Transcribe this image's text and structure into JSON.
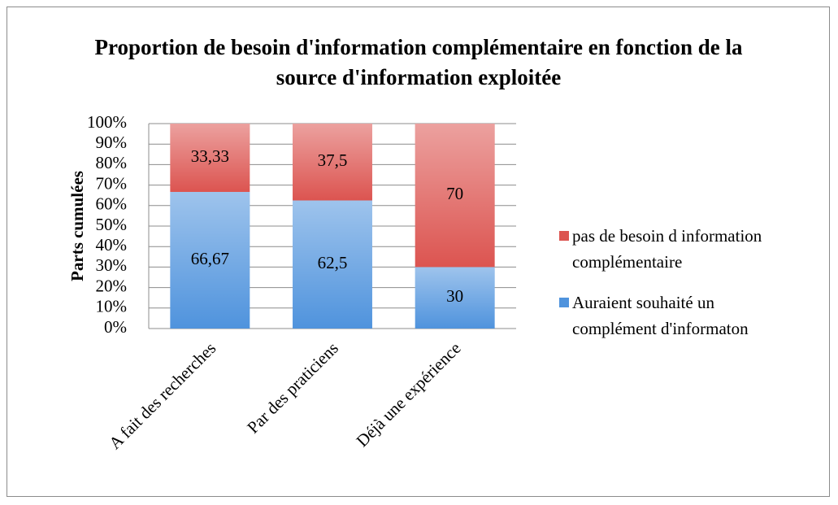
{
  "chart_data": {
    "type": "stacked_bar",
    "title": "Proportion de besoin d'information complémentaire en fonction de la source d'information exploitée",
    "y_axis_label": "Parts cumulées",
    "categories": [
      "A fait des recherches",
      "Par des praticiens",
      "Déjà une expérience"
    ],
    "series": [
      {
        "name": "Auraient souhaité un complément d'informaton",
        "color": "#4f93dd",
        "values": [
          66.67,
          62.5,
          30
        ],
        "value_labels": [
          "66,67",
          "62,5",
          "30"
        ]
      },
      {
        "name": "pas de besoin d information complémentaire",
        "color": "#dc5450",
        "values": [
          33.33,
          37.5,
          70
        ],
        "value_labels": [
          "33,33",
          "37,5",
          "70"
        ]
      }
    ],
    "ylim": [
      0,
      100
    ],
    "yticks": [
      {
        "value": 0,
        "label": "0%"
      },
      {
        "value": 10,
        "label": "10%"
      },
      {
        "value": 20,
        "label": "20%"
      },
      {
        "value": 30,
        "label": "30%"
      },
      {
        "value": 40,
        "label": "40%"
      },
      {
        "value": 50,
        "label": "50%"
      },
      {
        "value": 60,
        "label": "60%"
      },
      {
        "value": 70,
        "label": "70%"
      },
      {
        "value": 80,
        "label": "80%"
      },
      {
        "value": 90,
        "label": "90%"
      },
      {
        "value": 100,
        "label": "100%"
      }
    ],
    "grid": true,
    "legend": "right"
  }
}
